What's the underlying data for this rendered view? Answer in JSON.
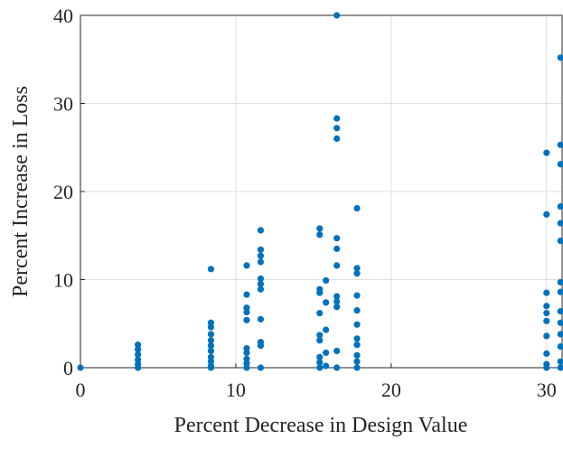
{
  "chart_data": {
    "type": "scatter",
    "x_label": "Percent Decrease in Design Value",
    "y_label": "Percent Increase in Loss",
    "color": "#0072bd",
    "grid": true,
    "xlim": [
      0,
      31
    ],
    "ylim": [
      0,
      40
    ],
    "xticks": [
      0,
      10,
      20,
      30
    ],
    "yticks": [
      0,
      10,
      20,
      30,
      40
    ],
    "x": [
      0,
      3.7,
      3.7,
      3.7,
      3.7,
      3.7,
      3.7,
      8.4,
      8.4,
      8.4,
      8.4,
      8.4,
      8.4,
      8.4,
      8.4,
      8.4,
      8.4,
      8.4,
      10.7,
      10.7,
      10.7,
      10.7,
      10.7,
      10.7,
      10.7,
      10.7,
      10.7,
      10.7,
      11.6,
      11.6,
      11.6,
      11.6,
      11.6,
      11.6,
      11.6,
      11.6,
      11.6,
      11.6,
      11.6,
      15.4,
      15.4,
      15.4,
      15.4,
      15.4,
      15.4,
      15.4,
      15.4,
      15.4,
      15.4,
      15.8,
      15.8,
      15.8,
      15.8,
      15.8,
      16.5,
      16.5,
      16.5,
      16.5,
      16.5,
      16.5,
      16.5,
      16.5,
      16.5,
      16.5,
      16.5,
      16.5,
      17.8,
      17.8,
      17.8,
      17.8,
      17.8,
      17.8,
      17.8,
      17.8,
      17.8,
      17.8,
      17.8,
      30,
      30,
      30,
      30,
      30,
      30,
      30,
      30,
      30,
      30,
      30.9,
      30.9,
      30.9,
      30.9,
      30.9,
      30.9,
      30.9,
      30.9,
      30.9,
      30.9,
      30.9,
      30.9,
      30.9,
      30.9
    ],
    "y": [
      0,
      2.6,
      2.1,
      1.5,
      0.9,
      0.4,
      0,
      11.2,
      5.1,
      4.6,
      3.8,
      3.1,
      2.5,
      1.9,
      1.2,
      0.7,
      0.2,
      0,
      11.6,
      8.3,
      6.8,
      6.3,
      5.4,
      2.2,
      1.7,
      1.0,
      0.5,
      0,
      15.6,
      13.4,
      12.7,
      12.0,
      10.1,
      9.5,
      8.9,
      5.5,
      2.9,
      2.5,
      0,
      15.8,
      15.1,
      8.9,
      8.5,
      6.2,
      3.7,
      3.1,
      1.2,
      0.6,
      0,
      9.9,
      7.4,
      4.3,
      1.7,
      0.2,
      40,
      28.3,
      27.2,
      26.0,
      14.7,
      13.5,
      11.6,
      8.1,
      7.5,
      6.9,
      1.9,
      0,
      18.1,
      11.3,
      10.7,
      8.2,
      6.5,
      4.9,
      3.3,
      2.6,
      1.4,
      0.7,
      0,
      24.4,
      17.4,
      8.5,
      7.0,
      6.2,
      5.3,
      3.6,
      1.6,
      0.4,
      0,
      35.2,
      25.3,
      23.1,
      18.3,
      16.4,
      14.4,
      9.7,
      8.6,
      6.4,
      5.1,
      3.8,
      2.4,
      0.7,
      0
    ]
  }
}
